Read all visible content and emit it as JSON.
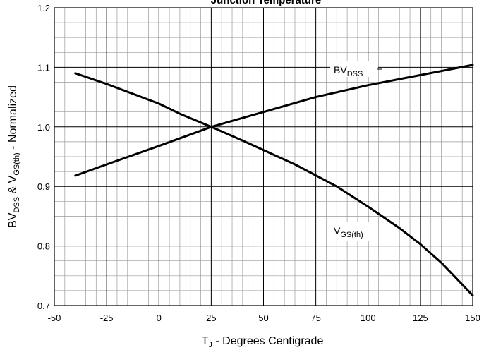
{
  "chart_data": {
    "type": "line",
    "title": "Junction Temperature",
    "xlabel": {
      "main": "T",
      "sub": "J",
      "rest": " - Degrees Centigrade"
    },
    "ylabel": {
      "p1": "BV",
      "s1": "DSS",
      "p2": " & V",
      "s2": "GS(th)",
      "p3": " - Normalized"
    },
    "xlim": [
      -50,
      150
    ],
    "ylim": [
      0.7,
      1.2
    ],
    "x_ticks": [
      "-50",
      "-25",
      "0",
      "25",
      "50",
      "75",
      "100",
      "125",
      "150"
    ],
    "y_ticks": [
      "0.7",
      "0.8",
      "0.9",
      "1.0",
      "1.1",
      "1.2"
    ],
    "grid": true,
    "series": [
      {
        "name": "BVDSS",
        "label": {
          "main": "BV",
          "sub": "DSS"
        },
        "x": [
          -40,
          -25,
          0,
          25,
          50,
          75,
          85,
          100,
          125,
          150
        ],
        "y": [
          0.918,
          0.937,
          0.968,
          1.0,
          1.025,
          1.05,
          1.058,
          1.07,
          1.087,
          1.104
        ]
      },
      {
        "name": "VGS(th)",
        "label": {
          "main": "V",
          "sub": "GS(th)"
        },
        "x": [
          -40,
          -25,
          0,
          10,
          25,
          40,
          65,
          85,
          100,
          115,
          125,
          135,
          150
        ],
        "y": [
          1.09,
          1.072,
          1.039,
          1.022,
          1.0,
          0.977,
          0.937,
          0.9,
          0.866,
          0.83,
          0.803,
          0.772,
          0.717
        ]
      }
    ]
  }
}
